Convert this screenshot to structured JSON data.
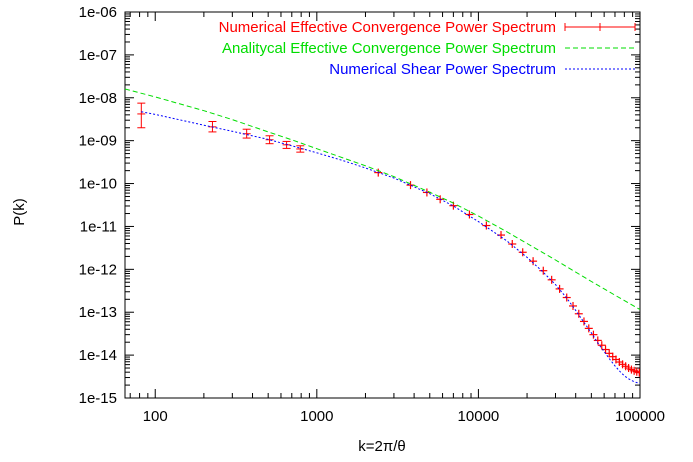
{
  "chart_data": {
    "type": "line",
    "xscale": "log",
    "yscale": "log",
    "xlabel": "k=2π/θ",
    "ylabel": "P(k)",
    "xlim": [
      65,
      100000
    ],
    "ylim": [
      1e-15,
      1e-06
    ],
    "grid": false,
    "legend_position": "top-right",
    "x_ticks": [
      {
        "value": 100,
        "label": "100"
      },
      {
        "value": 1000,
        "label": "1000"
      },
      {
        "value": 10000,
        "label": "10000"
      },
      {
        "value": 100000,
        "label": "100000"
      }
    ],
    "y_ticks": [
      {
        "value": 1e-15,
        "label": "1e-15"
      },
      {
        "value": 1e-14,
        "label": "1e-14"
      },
      {
        "value": 1e-13,
        "label": "1e-13"
      },
      {
        "value": 1e-12,
        "label": "1e-12"
      },
      {
        "value": 1e-11,
        "label": "1e-11"
      },
      {
        "value": 1e-10,
        "label": "1e-10"
      },
      {
        "value": 1e-09,
        "label": "1e-09"
      },
      {
        "value": 1e-08,
        "label": "1e-08"
      },
      {
        "value": 1e-07,
        "label": "1e-07"
      },
      {
        "value": 1e-06,
        "label": "1e-06"
      }
    ],
    "series": [
      {
        "name": "Numerical Effective Convergence Power Spectrum",
        "color": "#ff0000",
        "style": "errorbars",
        "points": [
          {
            "x": 82,
            "y": 4.2e-09,
            "ylo": 2e-09,
            "yhi": 7.5e-09
          },
          {
            "x": 226,
            "y": 2.1e-09,
            "ylo": 1.6e-09,
            "yhi": 2.8e-09
          },
          {
            "x": 368,
            "y": 1.45e-09,
            "ylo": 1.15e-09,
            "yhi": 1.85e-09
          },
          {
            "x": 510,
            "y": 1.05e-09,
            "ylo": 8.5e-10,
            "yhi": 1.3e-09
          },
          {
            "x": 650,
            "y": 8e-10,
            "ylo": 6.6e-10,
            "yhi": 9.6e-10
          },
          {
            "x": 790,
            "y": 6.4e-10,
            "ylo": 5.4e-10,
            "yhi": 7.6e-10
          },
          {
            "x": 2400,
            "y": 1.8e-10
          },
          {
            "x": 3800,
            "y": 9.2e-11
          },
          {
            "x": 4800,
            "y": 6.2e-11
          },
          {
            "x": 5800,
            "y": 4.3e-11
          },
          {
            "x": 7000,
            "y": 3.05e-11
          },
          {
            "x": 8800,
            "y": 1.9e-11
          },
          {
            "x": 11200,
            "y": 1.05e-11
          },
          {
            "x": 13800,
            "y": 6.3e-12
          },
          {
            "x": 16200,
            "y": 3.9e-12
          },
          {
            "x": 18800,
            "y": 2.5e-12
          },
          {
            "x": 21800,
            "y": 1.55e-12
          },
          {
            "x": 25200,
            "y": 9.3e-13
          },
          {
            "x": 28400,
            "y": 5.7e-13
          },
          {
            "x": 31800,
            "y": 3.5e-13
          },
          {
            "x": 35200,
            "y": 2.2e-13
          },
          {
            "x": 38500,
            "y": 1.4e-13
          },
          {
            "x": 41800,
            "y": 9.2e-14
          },
          {
            "x": 45000,
            "y": 6.1e-14
          },
          {
            "x": 48200,
            "y": 4.2e-14
          },
          {
            "x": 51500,
            "y": 3e-14
          },
          {
            "x": 54800,
            "y": 2.2e-14
          },
          {
            "x": 58000,
            "y": 1.7e-14
          },
          {
            "x": 61200,
            "y": 1.35e-14
          },
          {
            "x": 64500,
            "y": 1.1e-14
          },
          {
            "x": 67800,
            "y": 9.2e-15
          },
          {
            "x": 71000,
            "y": 7.9e-15
          },
          {
            "x": 74500,
            "y": 6.9e-15
          },
          {
            "x": 78000,
            "y": 6.1e-15
          },
          {
            "x": 81500,
            "y": 5.5e-15
          },
          {
            "x": 85000,
            "y": 5e-15
          },
          {
            "x": 88500,
            "y": 4.6e-15
          },
          {
            "x": 92000,
            "y": 4.3e-15
          },
          {
            "x": 95500,
            "y": 4.1e-15
          },
          {
            "x": 99000,
            "y": 3.9e-15
          }
        ]
      },
      {
        "name": "Analitycal Effective Convergence Power Spectrum",
        "color": "#00dd00",
        "style": "dashed",
        "points": [
          {
            "x": 65,
            "y": 1.6e-08
          },
          {
            "x": 100,
            "y": 1.05e-08
          },
          {
            "x": 200,
            "y": 5e-09
          },
          {
            "x": 300,
            "y": 3.1e-09
          },
          {
            "x": 500,
            "y": 1.6e-09
          },
          {
            "x": 700,
            "y": 1.05e-09
          },
          {
            "x": 1000,
            "y": 6.5e-10
          },
          {
            "x": 1500,
            "y": 3.8e-10
          },
          {
            "x": 2000,
            "y": 2.6e-10
          },
          {
            "x": 3000,
            "y": 1.45e-10
          },
          {
            "x": 5000,
            "y": 6.3e-11
          },
          {
            "x": 7000,
            "y": 3.5e-11
          },
          {
            "x": 10000,
            "y": 1.75e-11
          },
          {
            "x": 15000,
            "y": 7.5e-12
          },
          {
            "x": 20000,
            "y": 4e-12
          },
          {
            "x": 30000,
            "y": 1.65e-12
          },
          {
            "x": 50000,
            "y": 5.2e-13
          },
          {
            "x": 70000,
            "y": 2.5e-13
          },
          {
            "x": 100000,
            "y": 1.15e-13
          }
        ]
      },
      {
        "name": "Numerical Shear Power Spectrum",
        "color": "#0000ff",
        "style": "dotted",
        "points": [
          {
            "x": 82,
            "y": 4.7e-09
          },
          {
            "x": 100,
            "y": 4.1e-09
          },
          {
            "x": 200,
            "y": 2.3e-09
          },
          {
            "x": 300,
            "y": 1.65e-09
          },
          {
            "x": 500,
            "y": 1.07e-09
          },
          {
            "x": 700,
            "y": 7.6e-10
          },
          {
            "x": 1000,
            "y": 5.2e-10
          },
          {
            "x": 1500,
            "y": 3.3e-10
          },
          {
            "x": 2000,
            "y": 2.3e-10
          },
          {
            "x": 3000,
            "y": 1.35e-10
          },
          {
            "x": 5000,
            "y": 5.8e-11
          },
          {
            "x": 7000,
            "y": 3e-11
          },
          {
            "x": 10000,
            "y": 1.3e-11
          },
          {
            "x": 15000,
            "y": 4.6e-12
          },
          {
            "x": 20000,
            "y": 1.9e-12
          },
          {
            "x": 25000,
            "y": 8.8e-13
          },
          {
            "x": 30000,
            "y": 4.4e-13
          },
          {
            "x": 35000,
            "y": 2.2e-13
          },
          {
            "x": 40000,
            "y": 1.1e-13
          },
          {
            "x": 45000,
            "y": 5.8e-14
          },
          {
            "x": 50000,
            "y": 3.3e-14
          },
          {
            "x": 55000,
            "y": 1.9e-14
          },
          {
            "x": 60000,
            "y": 1.2e-14
          },
          {
            "x": 65000,
            "y": 8e-15
          },
          {
            "x": 70000,
            "y": 5.6e-15
          },
          {
            "x": 75000,
            "y": 4.2e-15
          },
          {
            "x": 80000,
            "y": 3.3e-15
          },
          {
            "x": 85000,
            "y": 2.8e-15
          },
          {
            "x": 90000,
            "y": 2.5e-15
          },
          {
            "x": 95000,
            "y": 2.3e-15
          },
          {
            "x": 100000,
            "y": 2.2e-15
          }
        ]
      }
    ]
  }
}
